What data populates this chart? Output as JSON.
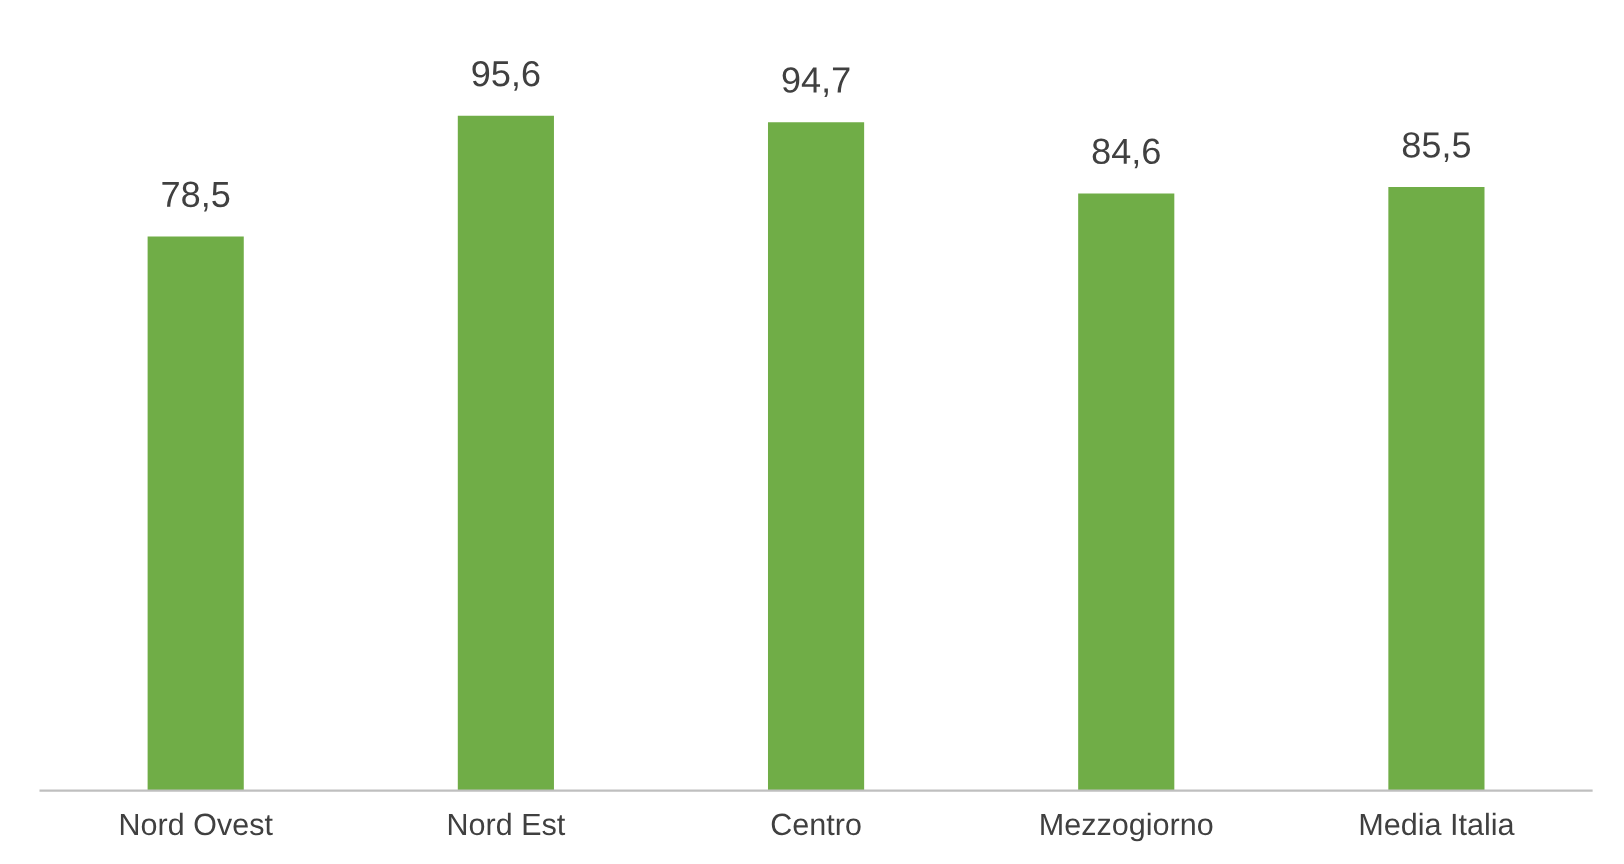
{
  "chart_data": {
    "type": "bar",
    "categories": [
      "Nord Ovest",
      "Nord Est",
      "Centro",
      "Mezzogiorno",
      "Media Italia"
    ],
    "values": [
      78.5,
      95.6,
      94.7,
      84.6,
      85.5
    ],
    "value_labels": [
      "78,5",
      "95,6",
      "94,7",
      "84,6",
      "85,5"
    ],
    "color": "#70ad47",
    "grid": false,
    "legend": false
  }
}
